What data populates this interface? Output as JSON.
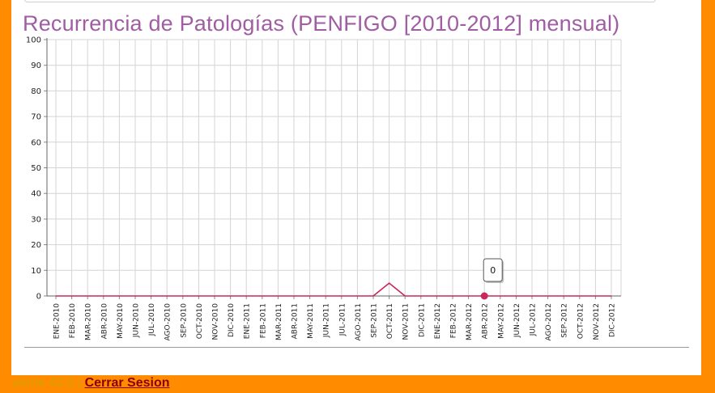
{
  "header": {
    "title": "Recurrencia de Patologías (PENFIGO [2010-2012] mensual)"
  },
  "footer": {
    "user": "aforte 42.5",
    "separator": "|",
    "logout_label": "Cerrar Sesion"
  },
  "colors": {
    "background": "#ff8c00",
    "line": "#c8285a",
    "title": "#a05da3"
  },
  "chart_data": {
    "type": "line",
    "title": "Recurrencia de Patologías (PENFIGO [2010-2012] mensual)",
    "xlabel": "",
    "ylabel": "",
    "ylim": [
      0,
      100
    ],
    "yticks": [
      0,
      10,
      20,
      30,
      40,
      50,
      60,
      70,
      80,
      90,
      100
    ],
    "grid": true,
    "categories": [
      "ENE-2010",
      "FEB-2010",
      "MAR-2010",
      "ABR-2010",
      "MAY-2010",
      "JUN-2010",
      "JUL-2010",
      "AGO-2010",
      "SEP-2010",
      "OCT-2010",
      "NOV-2010",
      "DIC-2010",
      "ENE-2011",
      "FEB-2011",
      "MAR-2011",
      "ABR-2011",
      "MAY-2011",
      "JUN-2011",
      "JUL-2011",
      "AGO-2011",
      "SEP-2011",
      "OCT-2011",
      "NOV-2011",
      "DIC-2011",
      "ENE-2012",
      "FEB-2012",
      "MAR-2012",
      "ABR-2012",
      "MAY-2012",
      "JUN-2012",
      "JUL-2012",
      "AGO-2012",
      "SEP-2012",
      "OCT-2012",
      "NOV-2012",
      "DIC-2012"
    ],
    "values": [
      0,
      0,
      0,
      0,
      0,
      0,
      0,
      0,
      0,
      0,
      0,
      0,
      0,
      0,
      0,
      0,
      0,
      0,
      0,
      0,
      0,
      5,
      0,
      0,
      0,
      0,
      0,
      0,
      0,
      0,
      0,
      0,
      0,
      0,
      0,
      0
    ],
    "highlight": {
      "category": "ABR-2012",
      "value": 0,
      "label": "0"
    }
  }
}
